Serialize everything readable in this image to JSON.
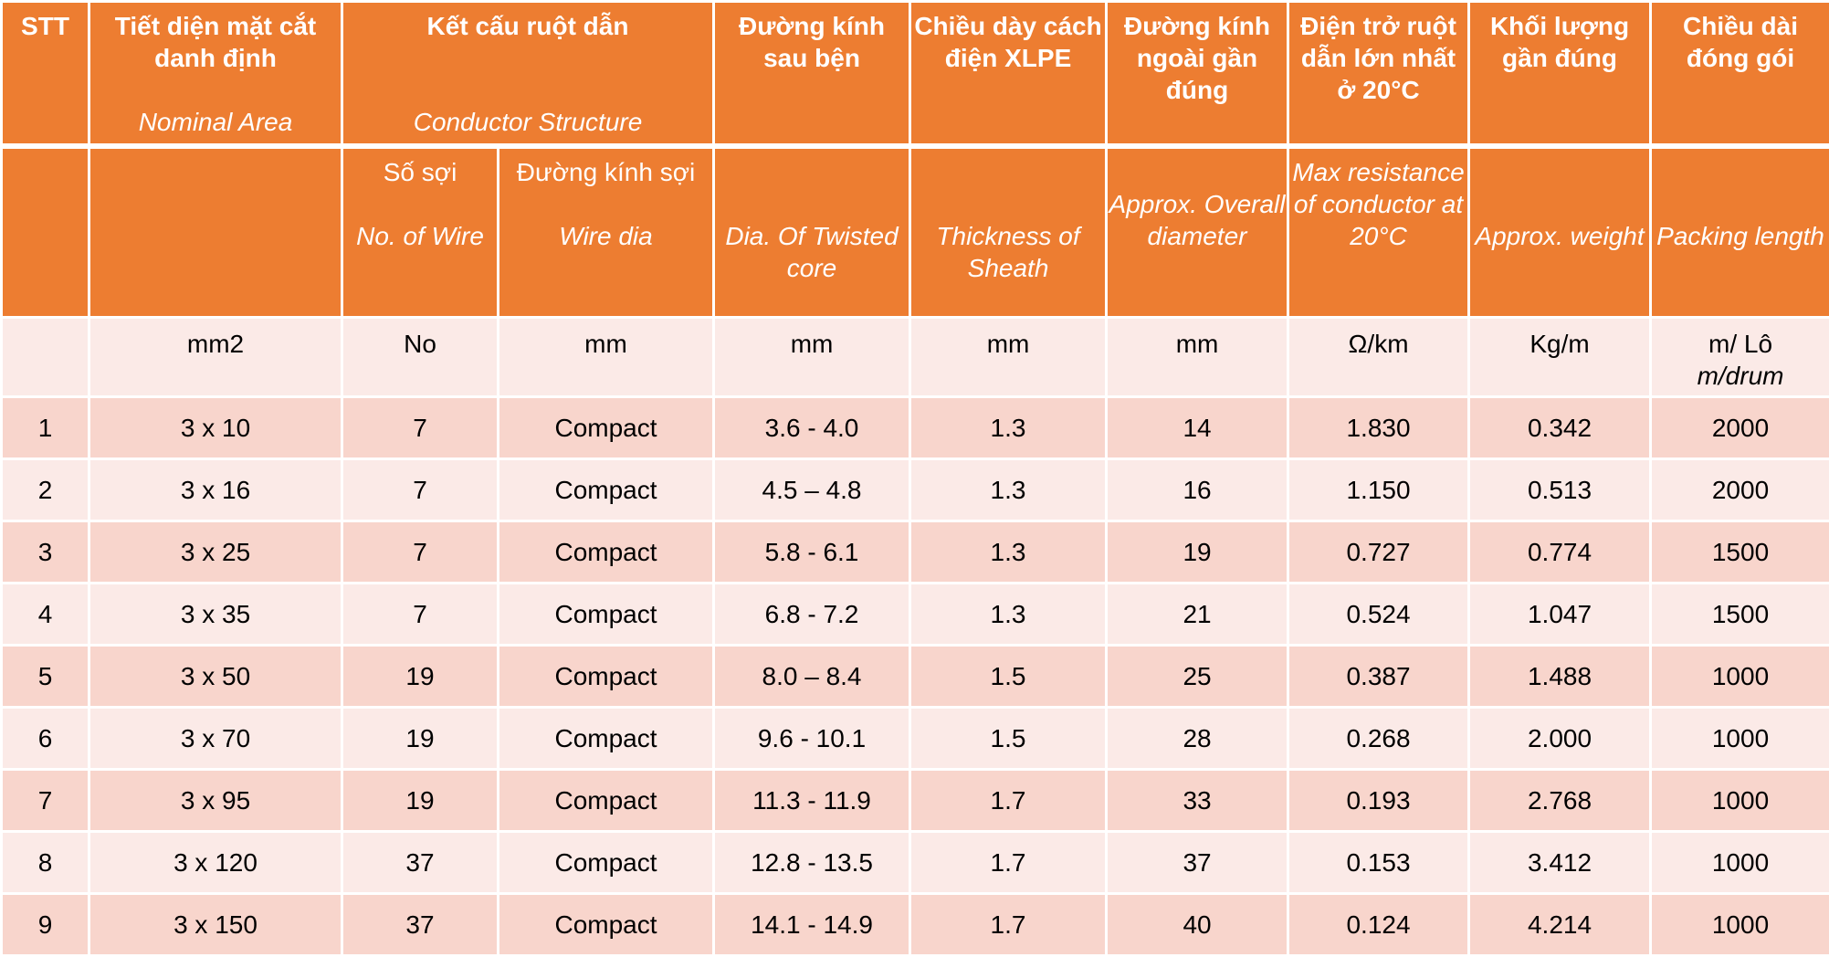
{
  "header": {
    "stt": "STT",
    "area_vi": "Tiết diện mặt cắt danh định",
    "area_en": "Nominal Area",
    "structure_vi": "Kết cấu ruột dẫn",
    "structure_en": "Conductor Structure",
    "twisted_vi": "Đường kính sau bện",
    "sheath_vi": "Chiều dày cách điện XLPE",
    "overall_vi": "Đường kính ngoài gần đúng",
    "resistance_vi": "Điện trở ruột dẫn lớn nhất ở 20°C",
    "weight_vi": "Khối lượng gần đúng",
    "packing_vi": "Chiều dài đóng gói"
  },
  "subheader": {
    "wires_vi": "Số sợi",
    "wires_en": "No. of Wire",
    "wiredia_vi": "Đường kính sợi",
    "wiredia_en": "Wire dia",
    "twisted_en": "Dia. Of Twisted core",
    "sheath_en": "Thickness of Sheath",
    "overall_en": "Approx. Overall diameter",
    "resistance_en": "Max resistance of conductor at 20°C",
    "weight_en": "Approx. weight",
    "packing_en": "Packing length"
  },
  "units": {
    "area": "mm2",
    "wires": "No",
    "wiredia": "mm",
    "twisted": "mm",
    "sheath": "mm",
    "overall": "mm",
    "resistance": "Ω/km",
    "weight": "Kg/m",
    "packing_1": "m/ Lô",
    "packing_2": "m/drum"
  },
  "rows": [
    {
      "stt": "1",
      "area": "3 x 10",
      "wires": "7",
      "wiredia": "Compact",
      "twisted": "3.6 - 4.0",
      "sheath": "1.3",
      "overall": "14",
      "resistance": "1.830",
      "weight": "0.342",
      "packing": "2000"
    },
    {
      "stt": "2",
      "area": "3 x 16",
      "wires": "7",
      "wiredia": "Compact",
      "twisted": "4.5 – 4.8",
      "sheath": "1.3",
      "overall": "16",
      "resistance": "1.150",
      "weight": "0.513",
      "packing": "2000"
    },
    {
      "stt": "3",
      "area": "3 x 25",
      "wires": "7",
      "wiredia": "Compact",
      "twisted": "5.8 - 6.1",
      "sheath": "1.3",
      "overall": "19",
      "resistance": "0.727",
      "weight": "0.774",
      "packing": "1500"
    },
    {
      "stt": "4",
      "area": "3 x 35",
      "wires": "7",
      "wiredia": "Compact",
      "twisted": "6.8 - 7.2",
      "sheath": "1.3",
      "overall": "21",
      "resistance": "0.524",
      "weight": "1.047",
      "packing": "1500"
    },
    {
      "stt": "5",
      "area": "3 x 50",
      "wires": "19",
      "wiredia": "Compact",
      "twisted": "8.0 – 8.4",
      "sheath": "1.5",
      "overall": "25",
      "resistance": "0.387",
      "weight": "1.488",
      "packing": "1000"
    },
    {
      "stt": "6",
      "area": "3 x 70",
      "wires": "19",
      "wiredia": "Compact",
      "twisted": "9.6 - 10.1",
      "sheath": "1.5",
      "overall": "28",
      "resistance": "0.268",
      "weight": "2.000",
      "packing": "1000"
    },
    {
      "stt": "7",
      "area": "3 x 95",
      "wires": "19",
      "wiredia": "Compact",
      "twisted": "11.3 - 11.9",
      "sheath": "1.7",
      "overall": "33",
      "resistance": "0.193",
      "weight": "2.768",
      "packing": "1000"
    },
    {
      "stt": "8",
      "area": "3 x 120",
      "wires": "37",
      "wiredia": "Compact",
      "twisted": "12.8 - 13.5",
      "sheath": "1.7",
      "overall": "37",
      "resistance": "0.153",
      "weight": "3.412",
      "packing": "1000"
    },
    {
      "stt": "9",
      "area": "3 x 150",
      "wires": "37",
      "wiredia": "Compact",
      "twisted": "14.1 - 14.9",
      "sheath": "1.7",
      "overall": "40",
      "resistance": "0.124",
      "weight": "4.214",
      "packing": "1000"
    }
  ],
  "colors": {
    "header": "#ED7D31",
    "row_dark": "#F8D5CC",
    "row_light": "#FBEAE7",
    "border": "#FFFFFF"
  }
}
